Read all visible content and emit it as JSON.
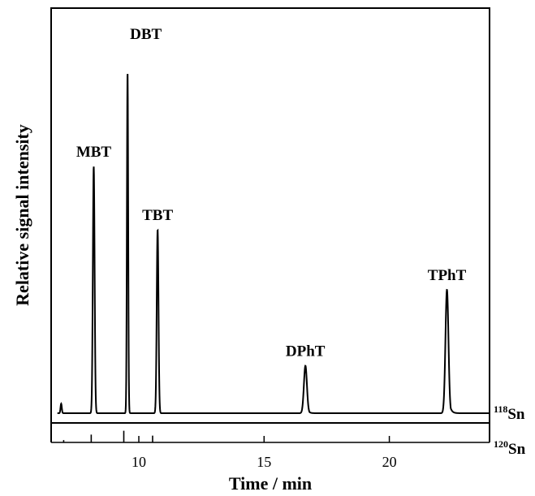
{
  "chart_data": {
    "type": "line",
    "title": "",
    "xlabel": "Time / min",
    "ylabel": "Relative signal intensity",
    "xlim": [
      6.5,
      24
    ],
    "x_ticks": [
      10,
      15,
      20
    ],
    "grid": false,
    "legend": "none",
    "peaks": [
      {
        "label": "MBT",
        "time": 8.2,
        "height": 0.78,
        "width": 0.035,
        "tail": 0.02
      },
      {
        "label": "DBT",
        "time": 9.55,
        "height": 1.08,
        "width": 0.025,
        "tail": 0.015
      },
      {
        "label": "TBT",
        "time": 10.75,
        "height": 0.58,
        "width": 0.035,
        "tail": 0.02
      },
      {
        "label": "DPhT",
        "time": 16.65,
        "height": 0.15,
        "width": 0.06,
        "tail": 0.06
      },
      {
        "label": "TPhT",
        "time": 22.3,
        "height": 0.39,
        "width": 0.06,
        "tail": 0.07
      }
    ],
    "series": [
      {
        "name": "118Sn",
        "isotope_mass": "118",
        "element": "Sn",
        "baseline": 0.0,
        "small_peaks": [
          {
            "time": 6.9,
            "height": 0.03,
            "width": 0.025
          }
        ]
      },
      {
        "name": "120Sn",
        "isotope_mass": "120",
        "element": "Sn",
        "peaks": [
          {
            "time": 8.1,
            "height": 0.4
          },
          {
            "time": 9.4,
            "height": 0.6
          },
          {
            "time": 10.55,
            "height": 0.35
          },
          {
            "time": 7.0,
            "height": 0.12
          }
        ]
      }
    ]
  }
}
